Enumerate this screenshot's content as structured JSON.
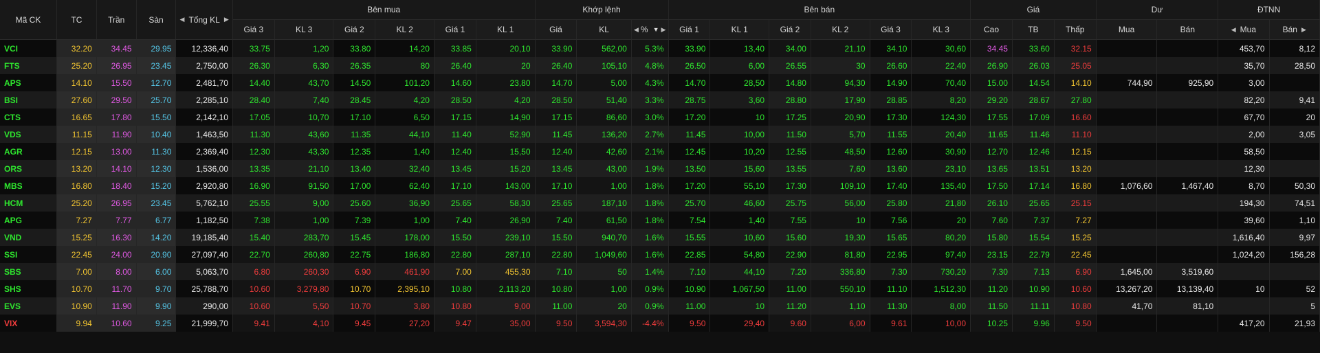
{
  "headers": {
    "symbol": "Mã CK",
    "ref": "TC",
    "ceiling": "Trần",
    "floor": "Sàn",
    "total_vol": "Tổng KL",
    "buy_side": "Bên mua",
    "matched": "Khớp lệnh",
    "sell_side": "Bên bán",
    "price": "Giá",
    "remain": "Dư",
    "foreign": "ĐTNN",
    "p3": "Giá 3",
    "v3": "KL 3",
    "p2": "Giá 2",
    "v2": "KL 2",
    "p1": "Giá 1",
    "v1": "KL 1",
    "m_price": "Giá",
    "m_vol": "KL",
    "m_pct": "%",
    "high": "Cao",
    "avg": "TB",
    "low": "Thấp",
    "buy": "Mua",
    "sell": "Bán",
    "f_buy": "Mua",
    "f_sell": "Bán"
  },
  "colors": {
    "ref": "#f2c531",
    "ceiling": "#e25ae5",
    "floor": "#55c7e8",
    "up": "#2ee62e",
    "down": "#ef3c3c"
  },
  "rows": [
    {
      "s": "VCI",
      "tc": "32.20",
      "tr": "34.45",
      "sa": "29.95",
      "tkl": "12,336,40",
      "b3": "33.75",
      "bk3": "1,20",
      "b2": "33.80",
      "bk2": "14,20",
      "b1": "33.85",
      "bk1": "20,10",
      "mp": "33.90",
      "mk": "562,00",
      "pct": "5.3%",
      "a1": "33.90",
      "ak1": "13,40",
      "a2": "34.00",
      "ak2": "21,10",
      "a3": "34.10",
      "ak3": "30,60",
      "hi": "34.45",
      "tb": "33.60",
      "lo": "32.15",
      "db": "",
      "ds": "",
      "fb": "453,70",
      "fs": "8,12"
    },
    {
      "s": "FTS",
      "tc": "25.20",
      "tr": "26.95",
      "sa": "23.45",
      "tkl": "2,750,00",
      "b3": "26.30",
      "bk3": "6,30",
      "b2": "26.35",
      "bk2": "80",
      "b1": "26.40",
      "bk1": "20",
      "mp": "26.40",
      "mk": "105,10",
      "pct": "4.8%",
      "a1": "26.50",
      "ak1": "6,00",
      "a2": "26.55",
      "ak2": "30",
      "a3": "26.60",
      "ak3": "22,40",
      "hi": "26.90",
      "tb": "26.03",
      "lo": "25.05",
      "db": "",
      "ds": "",
      "fb": "35,70",
      "fs": "28,50"
    },
    {
      "s": "APS",
      "tc": "14.10",
      "tr": "15.50",
      "sa": "12.70",
      "tkl": "2,481,70",
      "b3": "14.40",
      "bk3": "43,70",
      "b2": "14.50",
      "bk2": "101,20",
      "b1": "14.60",
      "bk1": "23,80",
      "mp": "14.70",
      "mk": "5,00",
      "pct": "4.3%",
      "a1": "14.70",
      "ak1": "28,50",
      "a2": "14.80",
      "ak2": "94,30",
      "a3": "14.90",
      "ak3": "70,40",
      "hi": "15.00",
      "tb": "14.54",
      "lo": "14.10",
      "db": "744,90",
      "ds": "925,90",
      "fb": "3,00",
      "fs": ""
    },
    {
      "s": "BSI",
      "tc": "27.60",
      "tr": "29.50",
      "sa": "25.70",
      "tkl": "2,285,10",
      "b3": "28.40",
      "bk3": "7,40",
      "b2": "28.45",
      "bk2": "4,20",
      "b1": "28.50",
      "bk1": "4,20",
      "mp": "28.50",
      "mk": "51,40",
      "pct": "3.3%",
      "a1": "28.75",
      "ak1": "3,60",
      "a2": "28.80",
      "ak2": "17,90",
      "a3": "28.85",
      "ak3": "8,20",
      "hi": "29.20",
      "tb": "28.67",
      "lo": "27.80",
      "db": "",
      "ds": "",
      "fb": "82,20",
      "fs": "9,41"
    },
    {
      "s": "CTS",
      "tc": "16.65",
      "tr": "17.80",
      "sa": "15.50",
      "tkl": "2,142,10",
      "b3": "17.05",
      "bk3": "10,70",
      "b2": "17.10",
      "bk2": "6,50",
      "b1": "17.15",
      "bk1": "14,90",
      "mp": "17.15",
      "mk": "86,60",
      "pct": "3.0%",
      "a1": "17.20",
      "ak1": "10",
      "a2": "17.25",
      "ak2": "20,90",
      "a3": "17.30",
      "ak3": "124,30",
      "hi": "17.55",
      "tb": "17.09",
      "lo": "16.60",
      "db": "",
      "ds": "",
      "fb": "67,70",
      "fs": "20"
    },
    {
      "s": "VDS",
      "tc": "11.15",
      "tr": "11.90",
      "sa": "10.40",
      "tkl": "1,463,50",
      "b3": "11.30",
      "bk3": "43,60",
      "b2": "11.35",
      "bk2": "44,10",
      "b1": "11.40",
      "bk1": "52,90",
      "mp": "11.45",
      "mk": "136,20",
      "pct": "2.7%",
      "a1": "11.45",
      "ak1": "10,00",
      "a2": "11.50",
      "ak2": "5,70",
      "a3": "11.55",
      "ak3": "20,40",
      "hi": "11.65",
      "tb": "11.46",
      "lo": "11.10",
      "db": "",
      "ds": "",
      "fb": "2,00",
      "fs": "3,05"
    },
    {
      "s": "AGR",
      "tc": "12.15",
      "tr": "13.00",
      "sa": "11.30",
      "tkl": "2,369,40",
      "b3": "12.30",
      "bk3": "43,30",
      "b2": "12.35",
      "bk2": "1,40",
      "b1": "12.40",
      "bk1": "15,50",
      "mp": "12.40",
      "mk": "42,60",
      "pct": "2.1%",
      "a1": "12.45",
      "ak1": "10,20",
      "a2": "12.55",
      "ak2": "48,50",
      "a3": "12.60",
      "ak3": "30,90",
      "hi": "12.70",
      "tb": "12.46",
      "lo": "12.15",
      "db": "",
      "ds": "",
      "fb": "58,50",
      "fs": ""
    },
    {
      "s": "ORS",
      "tc": "13.20",
      "tr": "14.10",
      "sa": "12.30",
      "tkl": "1,536,00",
      "b3": "13.35",
      "bk3": "21,10",
      "b2": "13.40",
      "bk2": "32,40",
      "b1": "13.45",
      "bk1": "15,20",
      "mp": "13.45",
      "mk": "43,00",
      "pct": "1.9%",
      "a1": "13.50",
      "ak1": "15,60",
      "a2": "13.55",
      "ak2": "7,60",
      "a3": "13.60",
      "ak3": "23,10",
      "hi": "13.65",
      "tb": "13.51",
      "lo": "13.20",
      "db": "",
      "ds": "",
      "fb": "12,30",
      "fs": ""
    },
    {
      "s": "MBS",
      "tc": "16.80",
      "tr": "18.40",
      "sa": "15.20",
      "tkl": "2,920,80",
      "b3": "16.90",
      "bk3": "91,50",
      "b2": "17.00",
      "bk2": "62,40",
      "b1": "17.10",
      "bk1": "143,00",
      "mp": "17.10",
      "mk": "1,00",
      "pct": "1.8%",
      "a1": "17.20",
      "ak1": "55,10",
      "a2": "17.30",
      "ak2": "109,10",
      "a3": "17.40",
      "ak3": "135,40",
      "hi": "17.50",
      "tb": "17.14",
      "lo": "16.80",
      "db": "1,076,60",
      "ds": "1,467,40",
      "fb": "8,70",
      "fs": "50,30"
    },
    {
      "s": "HCM",
      "tc": "25.20",
      "tr": "26.95",
      "sa": "23.45",
      "tkl": "5,762,10",
      "b3": "25.55",
      "bk3": "9,00",
      "b2": "25.60",
      "bk2": "36,90",
      "b1": "25.65",
      "bk1": "58,30",
      "mp": "25.65",
      "mk": "187,10",
      "pct": "1.8%",
      "a1": "25.70",
      "ak1": "46,60",
      "a2": "25.75",
      "ak2": "56,00",
      "a3": "25.80",
      "ak3": "21,80",
      "hi": "26.10",
      "tb": "25.65",
      "lo": "25.15",
      "db": "",
      "ds": "",
      "fb": "194,30",
      "fs": "74,51"
    },
    {
      "s": "APG",
      "tc": "7.27",
      "tr": "7.77",
      "sa": "6.77",
      "tkl": "1,182,50",
      "b3": "7.38",
      "bk3": "1,00",
      "b2": "7.39",
      "bk2": "1,00",
      "b1": "7.40",
      "bk1": "26,90",
      "mp": "7.40",
      "mk": "61,50",
      "pct": "1.8%",
      "a1": "7.54",
      "ak1": "1,40",
      "a2": "7.55",
      "ak2": "10",
      "a3": "7.56",
      "ak3": "20",
      "hi": "7.60",
      "tb": "7.37",
      "lo": "7.27",
      "db": "",
      "ds": "",
      "fb": "39,60",
      "fs": "1,10"
    },
    {
      "s": "VND",
      "tc": "15.25",
      "tr": "16.30",
      "sa": "14.20",
      "tkl": "19,185,40",
      "b3": "15.40",
      "bk3": "283,70",
      "b2": "15.45",
      "bk2": "178,00",
      "b1": "15.50",
      "bk1": "239,10",
      "mp": "15.50",
      "mk": "940,70",
      "pct": "1.6%",
      "a1": "15.55",
      "ak1": "10,60",
      "a2": "15.60",
      "ak2": "19,30",
      "a3": "15.65",
      "ak3": "80,20",
      "hi": "15.80",
      "tb": "15.54",
      "lo": "15.25",
      "db": "",
      "ds": "",
      "fb": "1,616,40",
      "fs": "9,97"
    },
    {
      "s": "SSI",
      "tc": "22.45",
      "tr": "24.00",
      "sa": "20.90",
      "tkl": "27,097,40",
      "b3": "22.70",
      "bk3": "260,80",
      "b2": "22.75",
      "bk2": "186,80",
      "b1": "22.80",
      "bk1": "287,10",
      "mp": "22.80",
      "mk": "1,049,60",
      "pct": "1.6%",
      "a1": "22.85",
      "ak1": "54,80",
      "a2": "22.90",
      "ak2": "81,80",
      "a3": "22.95",
      "ak3": "97,40",
      "hi": "23.15",
      "tb": "22.79",
      "lo": "22.45",
      "db": "",
      "ds": "",
      "fb": "1,024,20",
      "fs": "156,28"
    },
    {
      "s": "SBS",
      "tc": "7.00",
      "tr": "8.00",
      "sa": "6.00",
      "tkl": "5,063,70",
      "b3": "6.80",
      "bk3": "260,30",
      "b2": "6.90",
      "bk2": "461,90",
      "b1": "7.00",
      "bk1": "455,30",
      "mp": "7.10",
      "mk": "50",
      "pct": "1.4%",
      "a1": "7.10",
      "ak1": "44,10",
      "a2": "7.20",
      "ak2": "336,80",
      "a3": "7.30",
      "ak3": "730,20",
      "hi": "7.30",
      "tb": "7.13",
      "lo": "6.90",
      "db": "1,645,00",
      "ds": "3,519,60",
      "fb": "",
      "fs": ""
    },
    {
      "s": "SHS",
      "tc": "10.70",
      "tr": "11.70",
      "sa": "9.70",
      "tkl": "25,788,70",
      "b3": "10.60",
      "bk3": "3,279,80",
      "b2": "10.70",
      "bk2": "2,395,10",
      "b1": "10.80",
      "bk1": "2,113,20",
      "mp": "10.80",
      "mk": "1,00",
      "pct": "0.9%",
      "a1": "10.90",
      "ak1": "1,067,50",
      "a2": "11.00",
      "ak2": "550,10",
      "a3": "11.10",
      "ak3": "1,512,30",
      "hi": "11.20",
      "tb": "10.90",
      "lo": "10.60",
      "db": "13,267,20",
      "ds": "13,139,40",
      "fb": "10",
      "fs": "52"
    },
    {
      "s": "EVS",
      "tc": "10.90",
      "tr": "11.90",
      "sa": "9.90",
      "tkl": "290,00",
      "b3": "10.60",
      "bk3": "5,50",
      "b2": "10.70",
      "bk2": "3,80",
      "b1": "10.80",
      "bk1": "9,00",
      "mp": "11.00",
      "mk": "20",
      "pct": "0.9%",
      "a1": "11.00",
      "ak1": "10",
      "a2": "11.20",
      "ak2": "1,10",
      "a3": "11.30",
      "ak3": "8,00",
      "hi": "11.50",
      "tb": "11.11",
      "lo": "10.80",
      "db": "41,70",
      "ds": "81,10",
      "fb": "",
      "fs": "5"
    },
    {
      "s": "VIX",
      "tc": "9.94",
      "tr": "10.60",
      "sa": "9.25",
      "tkl": "21,999,70",
      "b3": "9.41",
      "bk3": "4,10",
      "b2": "9.45",
      "bk2": "27,20",
      "b1": "9.47",
      "bk1": "35,00",
      "mp": "9.50",
      "mk": "3,594,30",
      "pct": "-4.4%",
      "a1": "9.50",
      "ak1": "29,40",
      "a2": "9.60",
      "ak2": "6,00",
      "a3": "9.61",
      "ak3": "10,00",
      "hi": "10.25",
      "tb": "9.96",
      "lo": "9.50",
      "db": "",
      "ds": "",
      "fb": "417,20",
      "fs": "21,93"
    }
  ]
}
